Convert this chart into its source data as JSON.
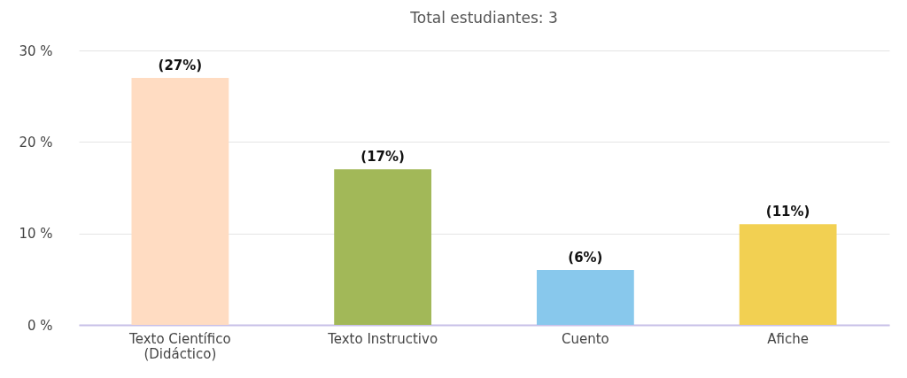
{
  "chart_data": {
    "type": "bar",
    "title": "Total estudiantes: 3",
    "categories": [
      "Texto Científico (Didáctico)",
      "Texto Instructivo",
      "Cuento",
      "Afiche"
    ],
    "values": [
      27,
      17,
      6,
      11
    ],
    "colors": [
      "#ffdcc2",
      "#a2b858",
      "#88c8ec",
      "#f2d052"
    ],
    "value_labels": [
      "(27%)",
      "(17%)",
      "(6%)",
      "(11%)"
    ],
    "ylim": [
      0,
      30
    ],
    "yticks": [
      {
        "value": 0,
        "label": "0 %"
      },
      {
        "value": 10,
        "label": "10 %"
      },
      {
        "value": 20,
        "label": "20 %"
      },
      {
        "value": 30,
        "label": "30 %"
      }
    ],
    "grid": "y"
  }
}
